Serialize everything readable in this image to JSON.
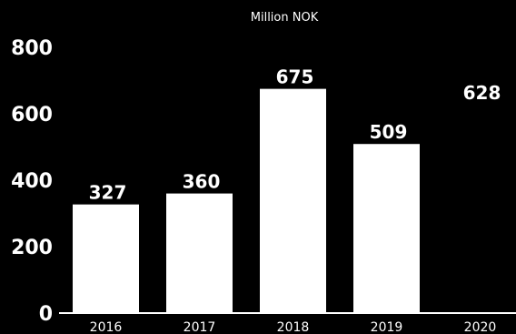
{
  "chart_data": {
    "type": "bar",
    "title": "",
    "unit_label": "Million NOK",
    "xlabel": "",
    "ylabel": "",
    "categories": [
      "2016",
      "2017",
      "2018",
      "2019",
      "2020"
    ],
    "values": [
      327,
      360,
      675,
      509,
      628
    ],
    "data_labels": [
      "327",
      "360",
      "675",
      "509",
      "628"
    ],
    "bar_visible": [
      true,
      true,
      true,
      true,
      false
    ],
    "ylim": [
      0,
      800
    ],
    "y_ticks": [
      0,
      200,
      400,
      600,
      800
    ],
    "grid": false,
    "legend": "none",
    "colors": {
      "background": "#000000",
      "bar": "#ffffff",
      "text": "#ffffff",
      "axis": "#ffffff"
    }
  }
}
